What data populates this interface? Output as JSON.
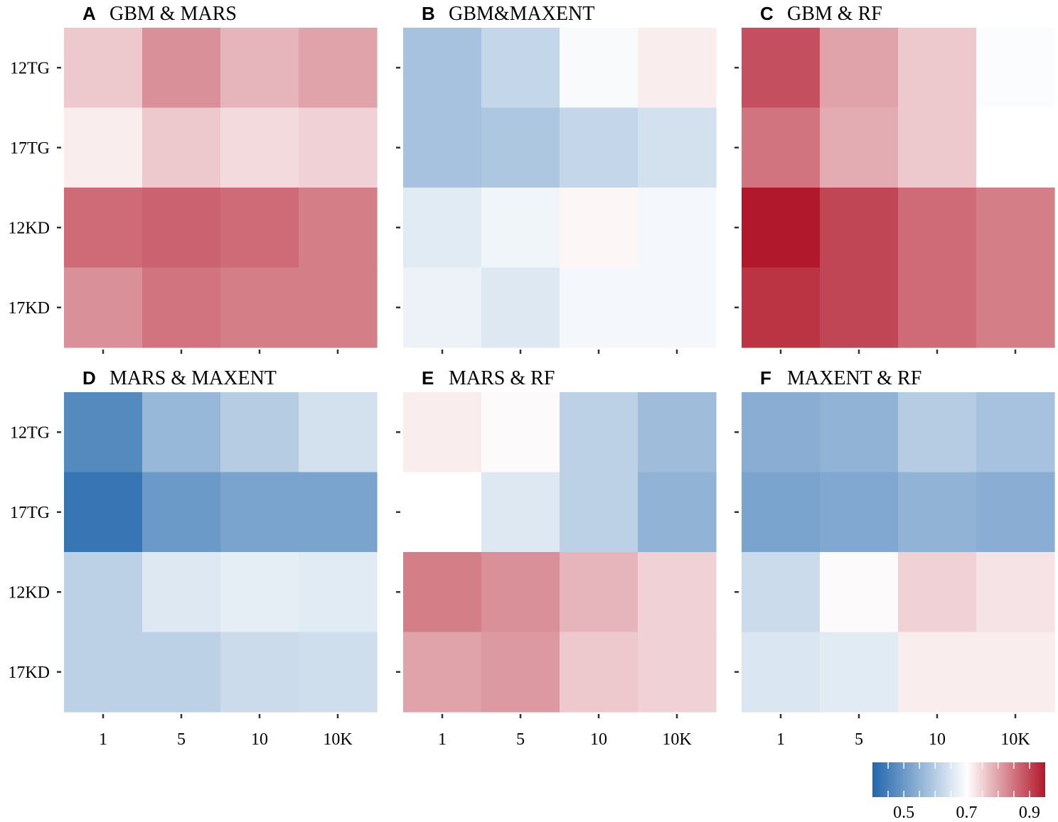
{
  "chart_data": {
    "type": "heatmap",
    "rows": [
      "12TG",
      "17TG",
      "12KD",
      "17KD"
    ],
    "columns": [
      "1",
      "5",
      "10",
      "10K"
    ],
    "panels": [
      {
        "letter": "A",
        "title": "GBM & MARS",
        "values": [
          [
            0.76,
            0.82,
            0.78,
            0.8
          ],
          [
            0.72,
            0.76,
            0.74,
            0.75
          ],
          [
            0.86,
            0.87,
            0.86,
            0.84
          ],
          [
            0.82,
            0.85,
            0.84,
            0.84
          ]
        ]
      },
      {
        "letter": "B",
        "title": "GBM&MAXENT",
        "values": [
          [
            0.58,
            0.62,
            0.69,
            0.72
          ],
          [
            0.58,
            0.59,
            0.62,
            0.64
          ],
          [
            0.66,
            0.68,
            0.71,
            0.685
          ],
          [
            0.675,
            0.655,
            0.685,
            0.685
          ]
        ]
      },
      {
        "letter": "C",
        "title": "GBM & RF",
        "values": [
          [
            0.89,
            0.8,
            0.76,
            0.695
          ],
          [
            0.85,
            0.79,
            0.76,
            0.7
          ],
          [
            0.95,
            0.9,
            0.86,
            0.84
          ],
          [
            0.92,
            0.9,
            0.86,
            0.84
          ]
        ]
      },
      {
        "letter": "D",
        "title": "MARS & MAXENT",
        "values": [
          [
            0.47,
            0.56,
            0.6,
            0.64
          ],
          [
            0.43,
            0.5,
            0.52,
            0.52
          ],
          [
            0.61,
            0.655,
            0.665,
            0.66
          ],
          [
            0.61,
            0.61,
            0.63,
            0.635
          ]
        ]
      },
      {
        "letter": "E",
        "title": "MARS & RF",
        "values": [
          [
            0.72,
            0.705,
            0.61,
            0.57
          ],
          [
            0.7,
            0.655,
            0.61,
            0.55
          ],
          [
            0.84,
            0.82,
            0.78,
            0.75
          ],
          [
            0.8,
            0.81,
            0.76,
            0.75
          ]
        ]
      },
      {
        "letter": "F",
        "title": "MAXENT & RF",
        "values": [
          [
            0.54,
            0.55,
            0.6,
            0.58
          ],
          [
            0.52,
            0.53,
            0.55,
            0.54
          ],
          [
            0.63,
            0.705,
            0.75,
            0.73
          ],
          [
            0.65,
            0.66,
            0.72,
            0.72
          ]
        ]
      }
    ],
    "colorbar": {
      "range": [
        0.4,
        0.95
      ],
      "midpoint": 0.7,
      "low_color": "#2166ac",
      "mid_color": "#ffffff",
      "high_color": "#b2182b",
      "ticks": [
        0.5,
        0.7,
        0.9
      ],
      "tick_labels": [
        "0.5",
        "0.7",
        "0.9"
      ]
    }
  }
}
